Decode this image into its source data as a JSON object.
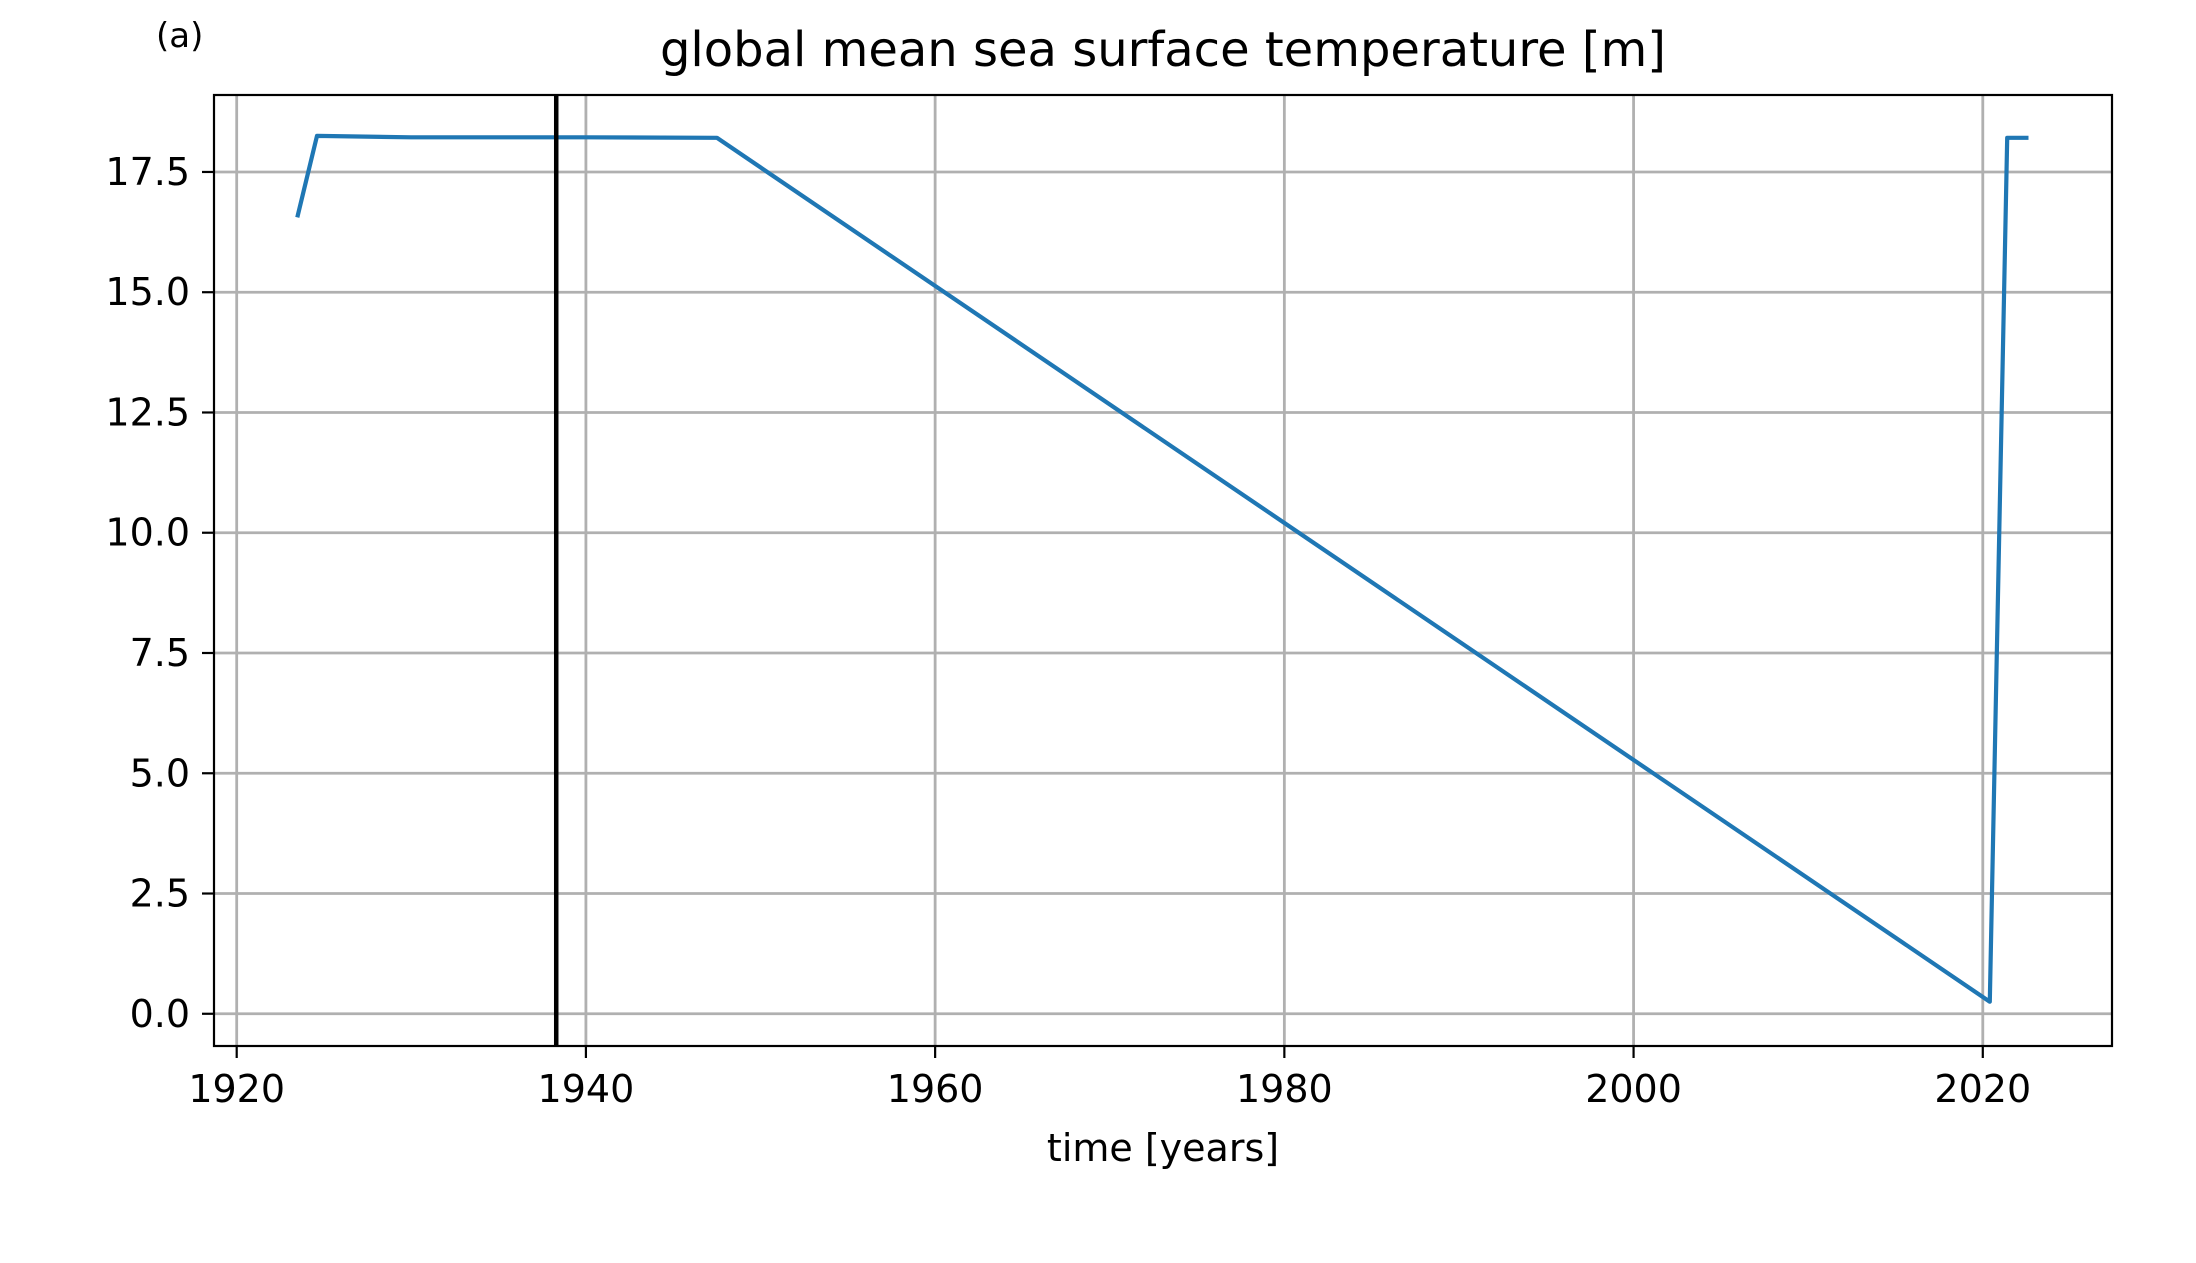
{
  "panel_label": "(a)",
  "chart_data": {
    "type": "line",
    "title": "global mean sea surface temperature [m]",
    "xlabel": "time [years]",
    "ylabel": "",
    "xlim": [
      1918.7,
      2027.4
    ],
    "ylim": [
      -0.67,
      19.1
    ],
    "x_ticks": [
      1920,
      1940,
      1960,
      1980,
      2000,
      2020
    ],
    "x_tick_labels": [
      "1920",
      "1940",
      "1960",
      "1980",
      "2000",
      "2020"
    ],
    "y_ticks": [
      0.0,
      2.5,
      5.0,
      7.5,
      10.0,
      12.5,
      15.0,
      17.5
    ],
    "y_tick_labels": [
      "0.0",
      "2.5",
      "5.0",
      "7.5",
      "10.0",
      "12.5",
      "15.0",
      "17.5"
    ],
    "grid": true,
    "series": [
      {
        "color": "#1f77b4",
        "x": [
          1923.5,
          1924.6,
          1930,
          1940,
          1947.5,
          2020.4,
          2021.4,
          2022.5
        ],
        "y": [
          16.6,
          18.25,
          18.22,
          18.22,
          18.21,
          0.25,
          18.21,
          18.21
        ]
      }
    ],
    "vertical_lines": [
      {
        "x": 1938.3,
        "color": "#000000"
      }
    ]
  }
}
